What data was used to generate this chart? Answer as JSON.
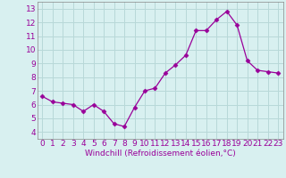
{
  "x": [
    0,
    1,
    2,
    3,
    4,
    5,
    6,
    7,
    8,
    9,
    10,
    11,
    12,
    13,
    14,
    15,
    16,
    17,
    18,
    19,
    20,
    21,
    22,
    23
  ],
  "y": [
    6.6,
    6.2,
    6.1,
    6.0,
    5.5,
    6.0,
    5.5,
    4.6,
    4.4,
    5.8,
    7.0,
    7.2,
    8.3,
    8.9,
    9.6,
    11.4,
    11.4,
    12.2,
    12.8,
    11.8,
    9.2,
    8.5,
    8.4,
    8.3
  ],
  "line_color": "#990099",
  "marker": "D",
  "marker_size": 2.5,
  "bg_color": "#d8f0f0",
  "grid_color": "#b8d8d8",
  "xlabel": "Windchill (Refroidissement éolien,°C)",
  "xlabel_color": "#990099",
  "xlabel_fontsize": 6.5,
  "tick_color": "#990099",
  "tick_fontsize": 6.5,
  "ylim": [
    3.5,
    13.5
  ],
  "xlim": [
    -0.5,
    23.5
  ],
  "yticks": [
    4,
    5,
    6,
    7,
    8,
    9,
    10,
    11,
    12,
    13
  ],
  "xticks": [
    0,
    1,
    2,
    3,
    4,
    5,
    6,
    7,
    8,
    9,
    10,
    11,
    12,
    13,
    14,
    15,
    16,
    17,
    18,
    19,
    20,
    21,
    22,
    23
  ]
}
